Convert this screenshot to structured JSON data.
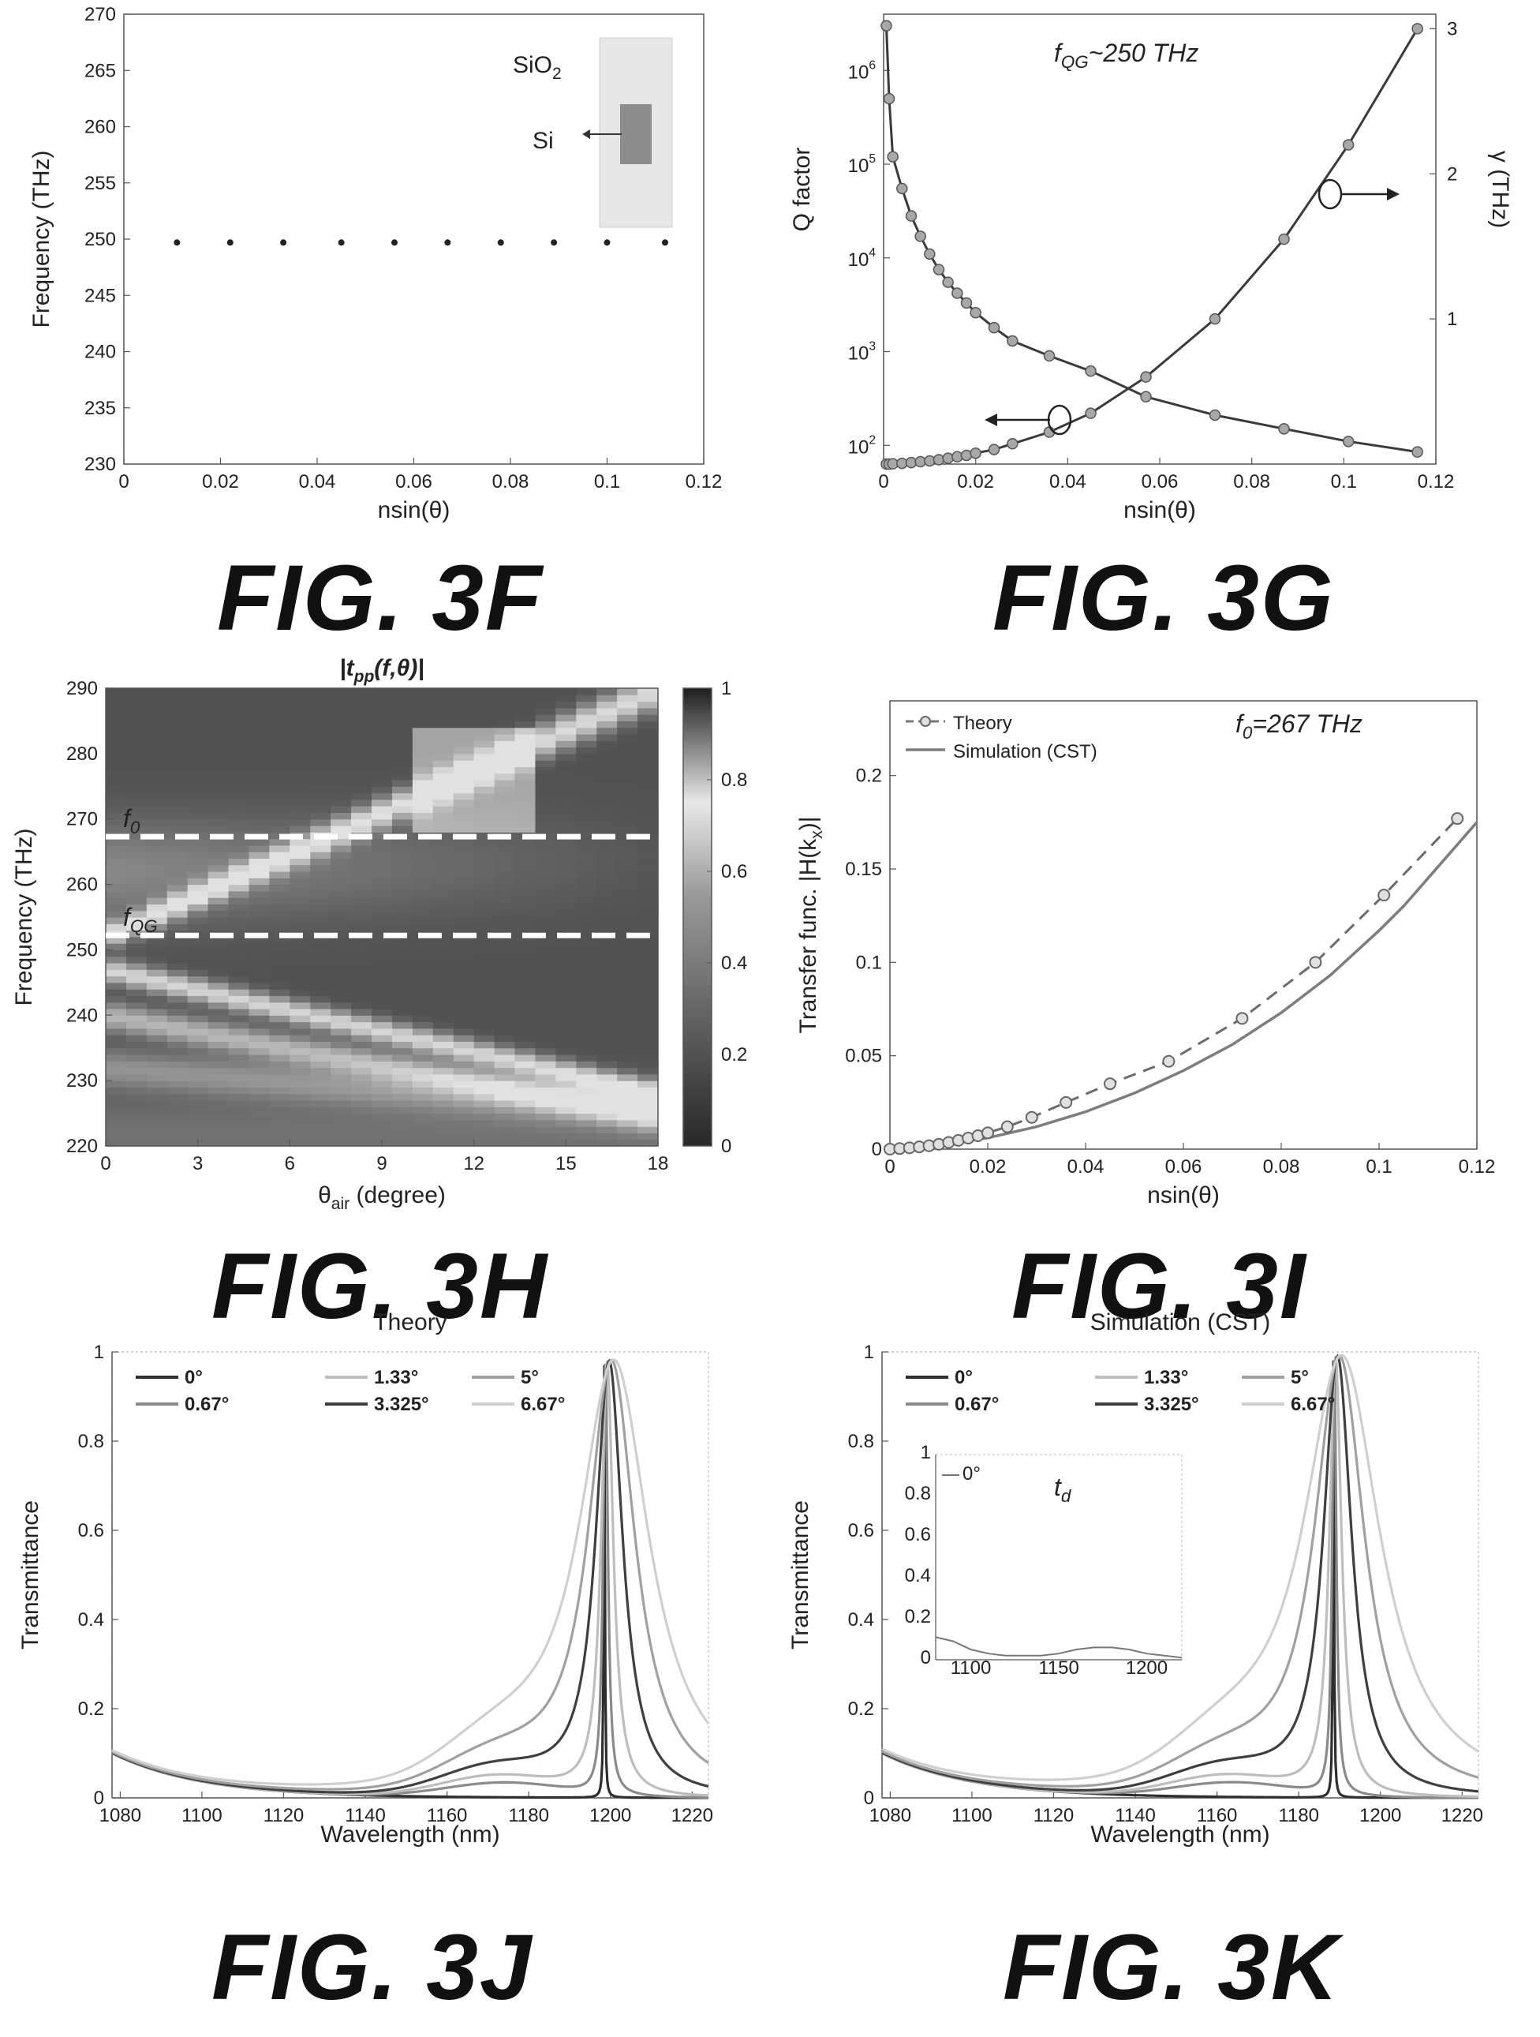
{
  "figures": {
    "f": "FIG. 3F",
    "g": "FIG. 3G",
    "h": "FIG. 3H",
    "i": "FIG. 3I",
    "j": "FIG. 3J",
    "k": "FIG. 3K"
  },
  "colors": {
    "axis": "#333333",
    "dark_line": "#3a3a3a",
    "mid_line": "#7d7d7d",
    "light_line": "#b5b5b5",
    "marker_fill": "#a8a8a8",
    "dashed": "#ffffff"
  },
  "chart_data": [
    {
      "id": "3F",
      "type": "scatter",
      "title": "",
      "xlabel": "nsin(θ)",
      "ylabel": "Frequency (THz)",
      "xlim": [
        0,
        0.12
      ],
      "ylim": [
        230,
        270
      ],
      "xticks": [
        "0",
        "0.02",
        "0.04",
        "0.06",
        "0.08",
        "0.1",
        "0.12"
      ],
      "yticks": [
        "230",
        "235",
        "240",
        "245",
        "250",
        "255",
        "260",
        "265",
        "270"
      ],
      "x": [
        0.011,
        0.022,
        0.033,
        0.045,
        0.056,
        0.067,
        0.078,
        0.089,
        0.1,
        0.112
      ],
      "y": [
        249.7,
        249.7,
        249.7,
        249.7,
        249.7,
        249.7,
        249.7,
        249.7,
        249.7,
        249.7
      ],
      "inset": {
        "outer_label": "SiO",
        "outer_sub": "2",
        "inner_label": "Si"
      }
    },
    {
      "id": "3G",
      "type": "line",
      "title": "",
      "annotation": {
        "main": "f",
        "sub": "QG",
        "rest": "~250 THz"
      },
      "xlabel": "nsin(θ)",
      "ylabel": "Q factor",
      "y2label": "γ (THz)",
      "xlim": [
        0,
        0.12
      ],
      "ylim_log10": [
        1.8,
        6.6
      ],
      "y2lim": [
        0,
        3.1
      ],
      "xticks": [
        "0",
        "0.02",
        "0.04",
        "0.06",
        "0.08",
        "0.1",
        "0.12"
      ],
      "yticks": [
        {
          "base": "10",
          "exp": "2"
        },
        {
          "base": "10",
          "exp": "3"
        },
        {
          "base": "10",
          "exp": "4"
        },
        {
          "base": "10",
          "exp": "5"
        },
        {
          "base": "10",
          "exp": "6"
        }
      ],
      "y2ticks": [
        "1",
        "2",
        "3"
      ],
      "series": [
        {
          "axis": "left",
          "x": [
            0.0006,
            0.0012,
            0.002,
            0.004,
            0.006,
            0.008,
            0.01,
            0.012,
            0.014,
            0.016,
            0.018,
            0.02,
            0.024,
            0.028,
            0.036,
            0.045,
            0.057,
            0.072,
            0.087,
            0.101,
            0.116
          ],
          "y": [
            3000000,
            500000,
            120000,
            55000,
            28000,
            17000,
            11000,
            7500,
            5500,
            4200,
            3300,
            2600,
            1800,
            1300,
            900,
            620,
            330,
            210,
            150,
            110,
            85
          ]
        },
        {
          "axis": "right",
          "x": [
            0.0006,
            0.0012,
            0.002,
            0.004,
            0.006,
            0.008,
            0.01,
            0.012,
            0.014,
            0.016,
            0.018,
            0.02,
            0.024,
            0.028,
            0.036,
            0.045,
            0.057,
            0.072,
            0.087,
            0.101,
            0.116
          ],
          "y": [
            0.0,
            0.0,
            0.002,
            0.005,
            0.01,
            0.016,
            0.022,
            0.03,
            0.04,
            0.05,
            0.06,
            0.075,
            0.1,
            0.14,
            0.22,
            0.35,
            0.6,
            1.0,
            1.55,
            2.2,
            3.0
          ]
        }
      ]
    },
    {
      "id": "3H",
      "type": "heatmap",
      "title": "|t",
      "title_sub": "pp",
      "title_rest": "(f,θ)|",
      "xlabel_main": "θ",
      "xlabel_sub": "air",
      "xlabel_rest": " (degree)",
      "ylabel": "Frequency (THz)",
      "xlim": [
        0,
        18
      ],
      "ylim": [
        220,
        290
      ],
      "xticks": [
        "0",
        "3",
        "6",
        "9",
        "12",
        "15",
        "18"
      ],
      "yticks": [
        "220",
        "230",
        "240",
        "250",
        "260",
        "270",
        "280",
        "290"
      ],
      "colorbar_ticks": [
        "0",
        "0.2",
        "0.4",
        "0.6",
        "0.8",
        "1"
      ],
      "dashed_lines": [
        {
          "main": "f",
          "sub": "0",
          "y": 267.3
        },
        {
          "main": "f",
          "sub": "QG",
          "y": 252.2
        }
      ]
    },
    {
      "id": "3I",
      "type": "line",
      "title": "",
      "annotation": {
        "main": "f",
        "sub": "0",
        "rest": "=267 THz"
      },
      "xlabel": "nsin(θ)",
      "ylabel_main": "Transfer func. |H(k",
      "ylabel_sub": "x",
      "ylabel_rest": ")|",
      "xlim": [
        0,
        0.12
      ],
      "ylim": [
        0,
        0.24
      ],
      "xticks": [
        "0",
        "0.02",
        "0.04",
        "0.06",
        "0.08",
        "0.1",
        "0.12"
      ],
      "yticks": [
        "0",
        "0.05",
        "0.1",
        "0.15",
        "0.2"
      ],
      "legend": [
        "Theory",
        "Simulation (CST)"
      ],
      "series": [
        {
          "name": "Theory",
          "x": [
            0.0,
            0.002,
            0.004,
            0.006,
            0.008,
            0.01,
            0.012,
            0.014,
            0.016,
            0.018,
            0.02,
            0.024,
            0.029,
            0.036,
            0.045,
            0.057,
            0.072,
            0.087,
            0.101,
            0.116
          ],
          "y": [
            0.0,
            0.0003,
            0.0007,
            0.0012,
            0.0018,
            0.0026,
            0.0036,
            0.0047,
            0.0059,
            0.0072,
            0.0087,
            0.012,
            0.017,
            0.025,
            0.035,
            0.047,
            0.07,
            0.1,
            0.136,
            0.177
          ]
        },
        {
          "name": "Simulation (CST)",
          "x": [
            0.0,
            0.01,
            0.02,
            0.03,
            0.04,
            0.05,
            0.06,
            0.07,
            0.08,
            0.09,
            0.1,
            0.105,
            0.11,
            0.12
          ],
          "y": [
            0.0,
            0.002,
            0.006,
            0.012,
            0.02,
            0.03,
            0.042,
            0.056,
            0.073,
            0.093,
            0.117,
            0.13,
            0.145,
            0.175
          ]
        }
      ]
    },
    {
      "id": "3J",
      "type": "line",
      "title": "Theory",
      "xlabel": "Wavelength (nm)",
      "ylabel": "Transmittance",
      "xlim": [
        1078,
        1224
      ],
      "ylim": [
        0,
        1
      ],
      "xticks": [
        "1080",
        "1100",
        "1120",
        "1140",
        "1160",
        "1180",
        "1200",
        "1220"
      ],
      "yticks": [
        "0",
        "0.2",
        "0.4",
        "0.6",
        "0.8",
        "1"
      ],
      "legend": [
        "0°",
        "1.33°",
        "5°",
        "0.67°",
        "3.325°",
        "6.67°"
      ],
      "series": [
        {
          "name": "0°",
          "peak": 1198.5,
          "width": 0.15,
          "height": 0.97
        },
        {
          "name": "0.67°",
          "peak": 1198.8,
          "width": 0.7,
          "height": 0.97
        },
        {
          "name": "1.33°",
          "peak": 1199.2,
          "width": 1.8,
          "height": 0.97
        },
        {
          "name": "3.325°",
          "peak": 1199.7,
          "width": 4.0,
          "height": 0.97
        },
        {
          "name": "5°",
          "peak": 1200.3,
          "width": 7.0,
          "height": 0.97
        },
        {
          "name": "6.67°",
          "peak": 1200.9,
          "width": 10.5,
          "height": 0.97
        }
      ]
    },
    {
      "id": "3K",
      "type": "line",
      "title": "Simulation (CST)",
      "xlabel": "Wavelength (nm)",
      "ylabel": "Transmittance",
      "xlim": [
        1078,
        1224
      ],
      "ylim": [
        0,
        1
      ],
      "xticks": [
        "1080",
        "1100",
        "1120",
        "1140",
        "1160",
        "1180",
        "1200",
        "1220"
      ],
      "yticks": [
        "0",
        "0.2",
        "0.4",
        "0.6",
        "0.8",
        "1"
      ],
      "legend": [
        "0°",
        "1.33°",
        "5°",
        "0.67°",
        "3.325°",
        "6.67°"
      ],
      "series": [
        {
          "name": "0°",
          "peak": 1188.5,
          "width": 0.15,
          "height": 0.98
        },
        {
          "name": "0.67°",
          "peak": 1188.7,
          "width": 0.6,
          "height": 0.98
        },
        {
          "name": "1.33°",
          "peak": 1189.0,
          "width": 1.8,
          "height": 0.98
        },
        {
          "name": "3.325°",
          "peak": 1189.5,
          "width": 4.2,
          "height": 0.98
        },
        {
          "name": "5°",
          "peak": 1190.0,
          "width": 7.5,
          "height": 0.98
        },
        {
          "name": "6.67°",
          "peak": 1190.6,
          "width": 11.5,
          "height": 0.98
        }
      ],
      "inset": {
        "legend": [
          "0°"
        ],
        "annotation_main": "t",
        "annotation_sub": "d",
        "xlim": [
          1080,
          1220
        ],
        "ylim": [
          0,
          1
        ],
        "xticks": [
          "1100",
          "1150",
          "1200"
        ],
        "yticks": [
          "0",
          "0.2",
          "0.4",
          "0.6",
          "0.8",
          "1"
        ],
        "series": {
          "x": [
            1080,
            1090,
            1100,
            1110,
            1120,
            1130,
            1140,
            1150,
            1160,
            1170,
            1180,
            1190,
            1200,
            1210,
            1220
          ],
          "y": [
            0.11,
            0.09,
            0.05,
            0.03,
            0.02,
            0.02,
            0.02,
            0.03,
            0.05,
            0.06,
            0.06,
            0.05,
            0.03,
            0.02,
            0.01
          ]
        }
      }
    }
  ]
}
